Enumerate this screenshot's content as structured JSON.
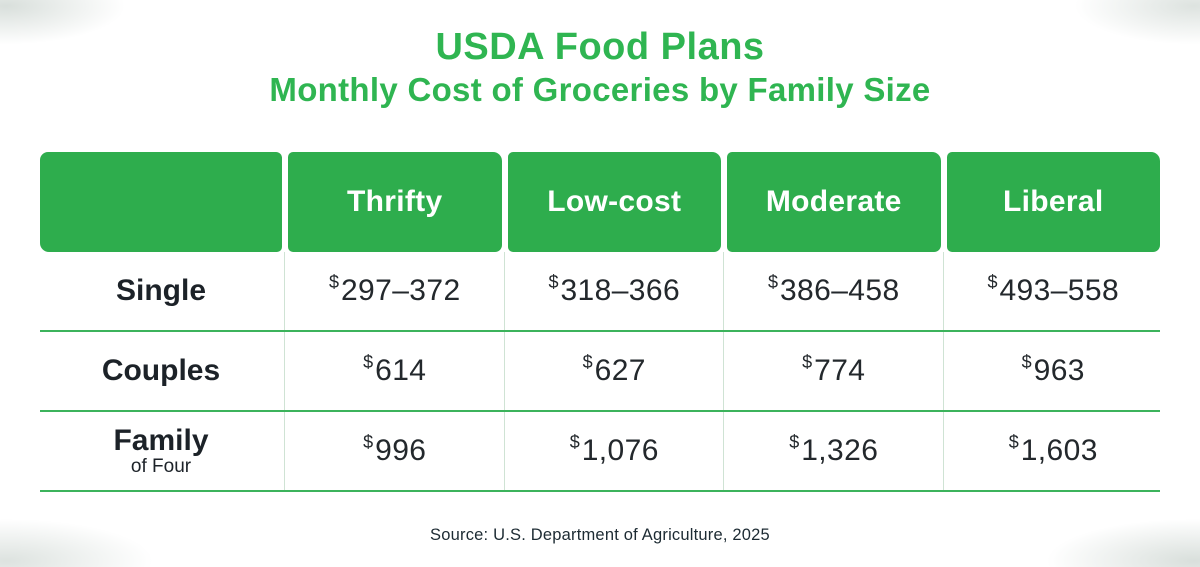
{
  "title": "USDA Food Plans",
  "subtitle": "Monthly Cost of Groceries by Family Size",
  "source": "Source: U.S. Department of Agriculture, 2025",
  "colors": {
    "green": "#2EAD4D",
    "title_green": "#2FB551",
    "row_line": "#3CB35C",
    "col_line": "#CFE3D4",
    "text_dark": "#1C2228"
  },
  "chart_data": {
    "type": "table",
    "currency_symbol": "$",
    "columns": [
      "Thrifty",
      "Low-cost",
      "Moderate",
      "Liberal"
    ],
    "rows": [
      {
        "label": "Single",
        "sublabel": "",
        "values": [
          "297–372",
          "318–366",
          "386–458",
          "493–558"
        ]
      },
      {
        "label": "Couples",
        "sublabel": "",
        "values": [
          "614",
          "627",
          "774",
          "963"
        ]
      },
      {
        "label": "Family",
        "sublabel": "of Four",
        "values": [
          "996",
          "1,076",
          "1,326",
          "1,603"
        ]
      }
    ]
  }
}
